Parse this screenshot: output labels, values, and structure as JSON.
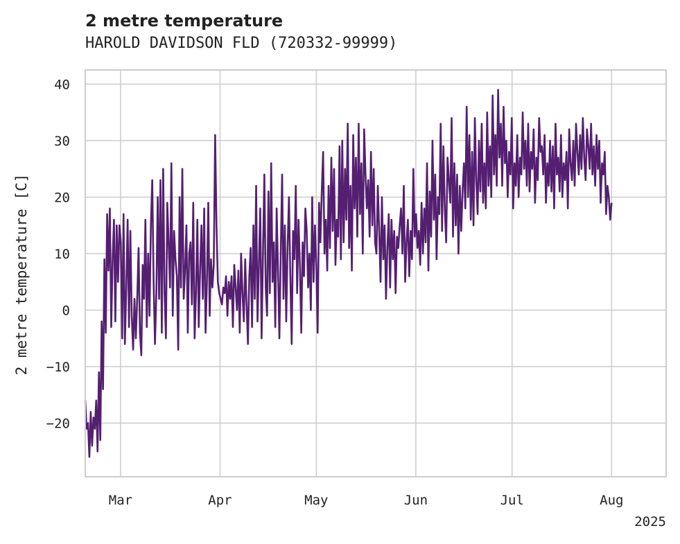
{
  "chart_data": {
    "type": "line",
    "title": "2 metre temperature",
    "subtitle": "HAROLD DAVIDSON FLD (720332-99999)",
    "ylabel": "2 metre temperature [C]",
    "xlabel": "",
    "year_label": "2025",
    "grid": true,
    "legend": "none",
    "color": "#541f70",
    "xlim": [
      "2025-02-18",
      "2025-08-18"
    ],
    "ylim": [
      -29.5,
      42.5
    ],
    "x_ticks": [
      {
        "date": "2025-03-01",
        "label": "Mar"
      },
      {
        "date": "2025-04-01",
        "label": "Apr"
      },
      {
        "date": "2025-05-01",
        "label": "May"
      },
      {
        "date": "2025-06-01",
        "label": "Jun"
      },
      {
        "date": "2025-07-01",
        "label": "Jul"
      },
      {
        "date": "2025-08-01",
        "label": "Aug"
      }
    ],
    "y_ticks": [
      -20,
      -10,
      0,
      10,
      20,
      30,
      40
    ],
    "series": [
      {
        "x_start": "2025-02-18",
        "step_hours": 6,
        "values": [
          -16,
          -21,
          -20,
          -26,
          -18,
          -24,
          -19,
          -21,
          -16,
          -25,
          -11,
          -23,
          -2,
          -14,
          9,
          -4,
          17,
          7,
          18,
          -3,
          9,
          16,
          -2,
          15,
          5,
          15,
          12,
          -5,
          17,
          -6,
          4,
          16,
          -3,
          14,
          -1,
          -7,
          2,
          -5,
          2,
          11,
          -4,
          -8,
          8,
          2,
          16,
          -3,
          10,
          -1,
          15,
          23,
          5,
          -6,
          3,
          20,
          2,
          23,
          -4,
          25,
          3,
          -5,
          19,
          12,
          4,
          26,
          -1,
          14,
          9,
          6,
          -7,
          20,
          4,
          25,
          2,
          7,
          15,
          -4,
          10,
          12,
          1,
          19,
          -5,
          3,
          16,
          -3,
          7,
          15,
          2,
          18,
          -4,
          5,
          19,
          -1,
          9,
          4,
          8,
          31,
          15,
          5,
          3,
          2,
          1,
          4,
          3,
          6,
          -1,
          5,
          2,
          6,
          -3,
          8,
          4,
          0,
          7,
          -4,
          10,
          3,
          -2,
          9,
          1,
          -6,
          6,
          11,
          -3,
          15,
          2,
          22,
          -2,
          8,
          18,
          -5,
          10,
          24,
          4,
          -1,
          21,
          3,
          26,
          5,
          12,
          -3,
          18,
          7,
          -5,
          10,
          24,
          2,
          15,
          -2,
          11,
          20,
          6,
          -6,
          14,
          9,
          22,
          3,
          16,
          8,
          -4,
          12,
          6,
          18,
          14,
          4,
          10,
          0,
          20,
          5,
          15,
          8,
          -4,
          19,
          12,
          21,
          28,
          10,
          16,
          7,
          22,
          11,
          27,
          14,
          25,
          8,
          16,
          13,
          29,
          9,
          30,
          12,
          25,
          16,
          33,
          11,
          22,
          7,
          31,
          18,
          27,
          13,
          33,
          17,
          26,
          10,
          32,
          24,
          18,
          23,
          13,
          28,
          15,
          25,
          12,
          10,
          22,
          14,
          5,
          20,
          9,
          15,
          2,
          11,
          17,
          4,
          16,
          9,
          14,
          3,
          13,
          11,
          15,
          18,
          10,
          22,
          5,
          12,
          16,
          6,
          14,
          9,
          25,
          13,
          17,
          11,
          14,
          8,
          19,
          10,
          18,
          12,
          26,
          7,
          21,
          13,
          30,
          16,
          24,
          9,
          20,
          17,
          33,
          14,
          29,
          18,
          12,
          27,
          23,
          19,
          34,
          13,
          26,
          15,
          24,
          10,
          22,
          14,
          21,
          26,
          18,
          36,
          20,
          31,
          16,
          28,
          15,
          34,
          23,
          17,
          30,
          21,
          33,
          19,
          26,
          18,
          35,
          22,
          29,
          20,
          38,
          24,
          31,
          22,
          39,
          27,
          33,
          22,
          36,
          26,
          30,
          20,
          28,
          24,
          34,
          18,
          26,
          22,
          31,
          20,
          27,
          24,
          35,
          25,
          30,
          22,
          33,
          21,
          28,
          25,
          32,
          19,
          27,
          23,
          34,
          28,
          29,
          24,
          31,
          19,
          26,
          22,
          30,
          21,
          29,
          18,
          33,
          24,
          27,
          21,
          31,
          20,
          26,
          23,
          28,
          18,
          32,
          26,
          23,
          30,
          22,
          33,
          28,
          24,
          31,
          25,
          34,
          27,
          23,
          32,
          29,
          25,
          33,
          24,
          29,
          22,
          31,
          25,
          30,
          19,
          26,
          24,
          28,
          17,
          22,
          20,
          16,
          19
        ],
        "x_end": "2025-08-01"
      }
    ]
  }
}
